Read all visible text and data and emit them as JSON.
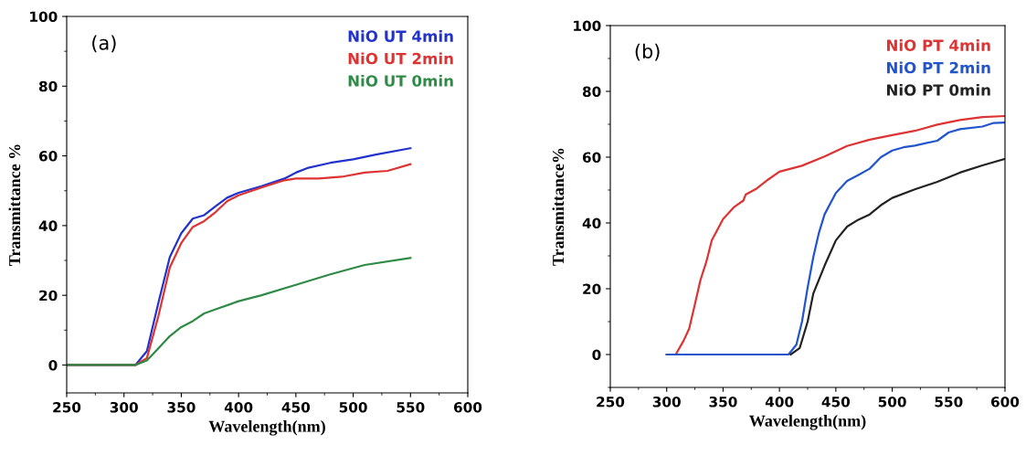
{
  "chart_data": [
    {
      "type": "line",
      "xlabel": "Wavelength(nm)",
      "ylabel": "Transmittance %",
      "annotations": [
        "(a)"
      ],
      "xlim": [
        250,
        600
      ],
      "xticks": [
        250,
        300,
        350,
        400,
        450,
        500,
        550,
        600
      ],
      "ylim": [
        -8,
        100
      ],
      "yticks": [
        0,
        20,
        40,
        60,
        80,
        100
      ],
      "grid": false,
      "legend": "top right",
      "series": [
        {
          "name": "NiO UT 4min",
          "color": "#2233cc",
          "x": [
            250,
            310,
            320,
            330,
            340,
            350,
            360,
            370,
            380,
            390,
            400,
            420,
            440,
            450,
            460,
            480,
            500,
            520,
            550
          ],
          "values": [
            0,
            0,
            4,
            17.8,
            31,
            37.8,
            42,
            43,
            45.6,
            48,
            49.4,
            51.3,
            53.5,
            55.2,
            56.5,
            58,
            59,
            60.4,
            62.2
          ]
        },
        {
          "name": "NiO UT 2min",
          "color": "#dd3333",
          "x": [
            250,
            310,
            320,
            330,
            340,
            350,
            360,
            370,
            380,
            390,
            400,
            420,
            440,
            450,
            470,
            490,
            510,
            530,
            550
          ],
          "values": [
            0,
            0,
            2,
            14,
            28,
            35,
            39.6,
            41.3,
            43.9,
            47,
            48.7,
            50.9,
            53,
            53.5,
            53.5,
            54,
            55.2,
            55.7,
            57.6
          ]
        },
        {
          "name": "NiO UT 0min",
          "color": "#2e8b45",
          "x": [
            250,
            310,
            320,
            330,
            340,
            350,
            360,
            370,
            380,
            400,
            420,
            450,
            480,
            510,
            550
          ],
          "values": [
            0,
            0,
            1.3,
            4.8,
            8.3,
            10.9,
            12.6,
            14.8,
            16,
            18.3,
            20,
            23,
            26,
            28.7,
            30.7
          ]
        }
      ]
    },
    {
      "type": "line",
      "xlabel": "Wavelength(nm)",
      "ylabel": "Transmittance%",
      "annotations": [
        "(b)"
      ],
      "xlim": [
        250,
        600
      ],
      "xticks": [
        250,
        300,
        350,
        400,
        450,
        500,
        550,
        600
      ],
      "ylim": [
        -10,
        100
      ],
      "yticks": [
        0,
        20,
        40,
        60,
        80,
        100
      ],
      "grid": false,
      "legend": "top right",
      "series": [
        {
          "name": "NiO PT 4min",
          "color": "#dd3333",
          "x": [
            300,
            308,
            315,
            320,
            325,
            330,
            335,
            340,
            350,
            360,
            368,
            370,
            380,
            390,
            400,
            420,
            440,
            460,
            480,
            500,
            520,
            540,
            560,
            580,
            600
          ],
          "values": [
            0,
            0,
            4.2,
            7.9,
            15.3,
            22.7,
            28,
            34.7,
            41.2,
            44.9,
            46.8,
            48.6,
            50.5,
            53.2,
            55.6,
            57.4,
            60.2,
            63.4,
            65.3,
            66.7,
            68,
            69.9,
            71.3,
            72.2,
            72.5
          ]
        },
        {
          "name": "NiO PT 2min",
          "color": "#2255cc",
          "x": [
            300,
            408,
            415,
            420,
            425,
            430,
            435,
            440,
            450,
            460,
            470,
            480,
            490,
            500,
            510,
            520,
            540,
            550,
            560,
            580,
            590,
            600
          ],
          "values": [
            0,
            0,
            3,
            10,
            20.4,
            29.6,
            37,
            42.6,
            49.1,
            52.8,
            54.6,
            56.5,
            60,
            62,
            63,
            63.5,
            65,
            67.5,
            68.5,
            69.3,
            70.4,
            70.5
          ]
        },
        {
          "name": "NiO PT 0min",
          "color": "#222222",
          "x": [
            410,
            418,
            425,
            430,
            440,
            450,
            460,
            470,
            480,
            490,
            500,
            520,
            540,
            560,
            580,
            600
          ],
          "values": [
            0,
            2,
            10,
            18.5,
            27,
            34.7,
            38.9,
            41,
            42.6,
            45.4,
            47.6,
            50.2,
            52.5,
            55.3,
            57.5,
            59.5
          ]
        }
      ]
    }
  ]
}
